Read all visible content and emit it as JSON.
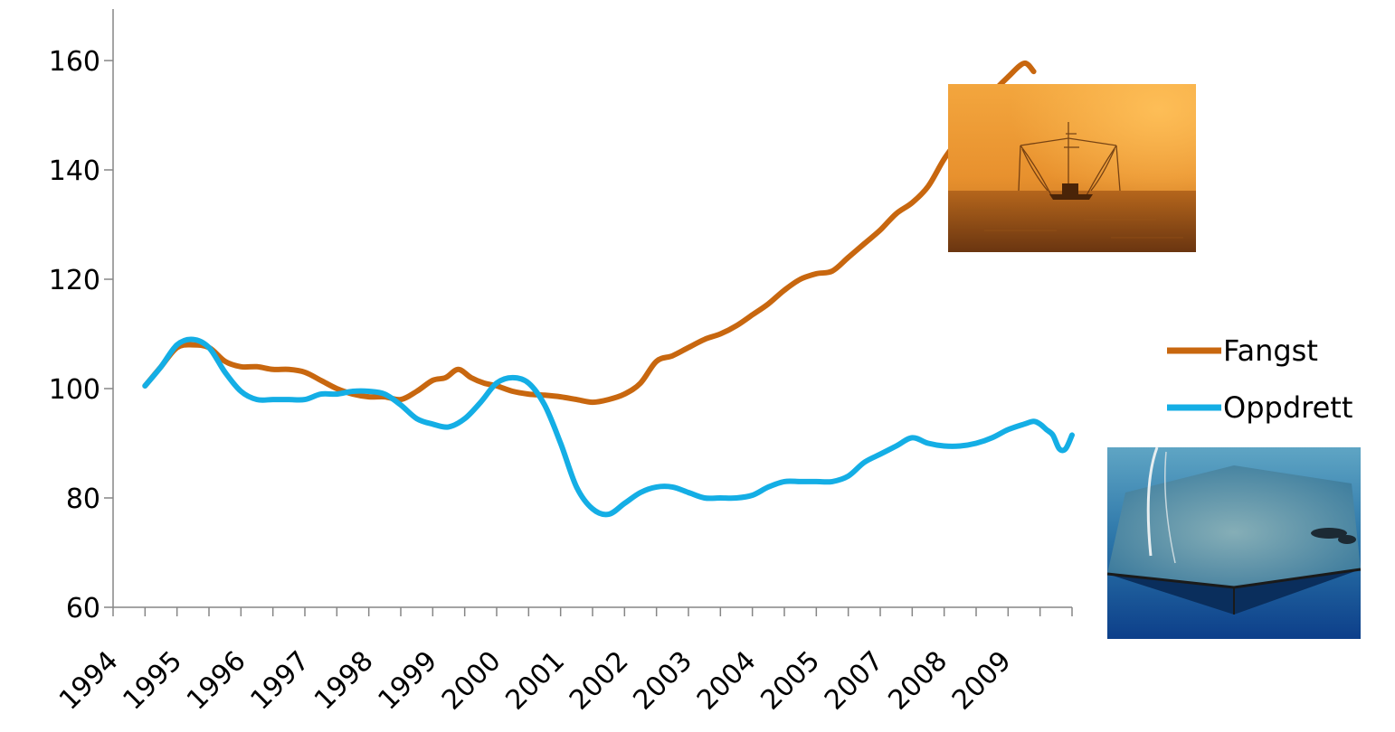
{
  "chart_data": {
    "type": "line",
    "title": "",
    "xlabel": "",
    "ylabel": "",
    "ylim": [
      60,
      170
    ],
    "yticks": [
      60,
      80,
      100,
      120,
      140,
      160
    ],
    "xtick_labels": [
      "1994",
      "1995",
      "1996",
      "1997",
      "1998",
      "1999",
      "2000",
      "2001",
      "2002",
      "2003",
      "2004",
      "2005",
      "2007",
      "2008",
      "2009"
    ],
    "x_range": [
      1994.0,
      2009.0
    ],
    "grid": false,
    "legend": {
      "position": "right"
    },
    "series": [
      {
        "name": "Fangst",
        "color": "#c8670f",
        "x": [
          1994.5,
          1994.75,
          1995.0,
          1995.25,
          1995.5,
          1995.75,
          1996.0,
          1996.25,
          1996.5,
          1996.75,
          1997.0,
          1997.25,
          1997.5,
          1997.75,
          1998.0,
          1998.25,
          1998.5,
          1998.75,
          1999.0,
          1999.2,
          1999.4,
          1999.6,
          1999.8,
          2000.0,
          2000.25,
          2000.5,
          2000.75,
          2001.0,
          2001.25,
          2001.5,
          2001.75,
          2002.0,
          2002.25,
          2002.5,
          2002.75,
          2003.0,
          2003.25,
          2003.5,
          2003.75,
          2004.0,
          2004.25,
          2004.5,
          2004.75,
          2005.0,
          2005.25,
          2005.5,
          2005.75,
          2006.0,
          2006.25,
          2006.5,
          2006.75,
          2007.0,
          2007.25,
          2007.5,
          2007.75,
          2008.0,
          2008.25,
          2008.4
        ],
        "y": [
          100.5,
          104,
          107.5,
          108,
          107.5,
          105,
          104,
          104,
          103.5,
          103.5,
          103,
          101.5,
          100,
          99,
          98.5,
          98.5,
          98,
          99.5,
          101.5,
          102,
          103.5,
          102,
          101,
          100.5,
          99.5,
          99,
          98.8,
          98.5,
          98,
          97.5,
          98,
          99,
          101,
          105,
          106,
          107.5,
          109,
          110,
          111.5,
          113.5,
          115.5,
          118,
          120,
          121,
          121.5,
          124,
          126.5,
          129,
          132,
          134,
          137,
          142,
          146,
          150,
          154,
          157,
          159.5,
          158
        ]
      },
      {
        "name": "Oppdrett",
        "color": "#14aee5",
        "x": [
          1994.5,
          1994.75,
          1995.0,
          1995.25,
          1995.5,
          1995.75,
          1996.0,
          1996.25,
          1996.5,
          1996.75,
          1997.0,
          1997.25,
          1997.5,
          1997.75,
          1998.0,
          1998.25,
          1998.5,
          1998.75,
          1999.0,
          1999.25,
          1999.5,
          1999.75,
          2000.0,
          2000.25,
          2000.5,
          2000.75,
          2001.0,
          2001.25,
          2001.5,
          2001.75,
          2002.0,
          2002.25,
          2002.5,
          2002.75,
          2003.0,
          2003.25,
          2003.5,
          2003.75,
          2004.0,
          2004.25,
          2004.5,
          2004.75,
          2005.0,
          2005.25,
          2005.5,
          2005.75,
          2006.0,
          2006.25,
          2006.5,
          2006.75,
          2007.0,
          2007.25,
          2007.5,
          2007.75,
          2008.0,
          2008.25,
          2008.4,
          2008.5,
          2008.6,
          2008.7,
          2008.8,
          2008.9,
          2009.0
        ],
        "y": [
          100.5,
          104,
          108,
          109,
          107.5,
          103,
          99.5,
          98,
          98,
          98,
          98,
          99,
          99,
          99.5,
          99.5,
          99,
          97,
          94.5,
          93.5,
          93,
          94.5,
          97.5,
          101,
          102,
          101,
          97,
          90,
          82,
          78,
          77,
          79,
          81,
          82,
          82,
          81,
          80,
          80,
          80,
          80.5,
          82,
          83,
          83,
          83,
          83,
          84,
          86.5,
          88,
          89.5,
          91,
          90,
          89.5,
          89.5,
          90,
          91,
          92.5,
          93.5,
          94,
          93.5,
          92.5,
          91.5,
          89,
          89,
          91.5
        ]
      }
    ]
  },
  "legend_items": [
    "Fangst",
    "Oppdrett"
  ],
  "images": [
    {
      "name": "fishing-boat-photo",
      "description_icon": "trawler-icon"
    },
    {
      "name": "fish-farm-net-photo",
      "description_icon": "net-pen-icon"
    }
  ]
}
